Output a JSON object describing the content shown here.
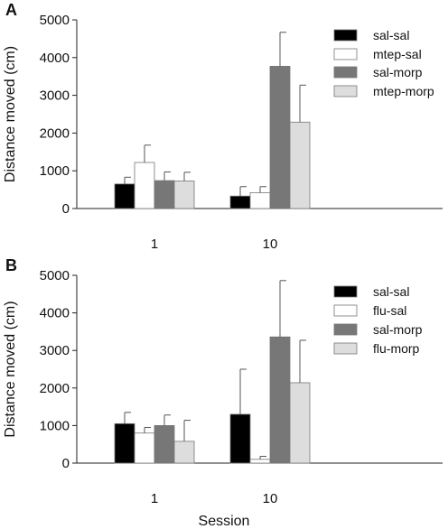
{
  "x_label": "Session",
  "chart_data": [
    {
      "type": "bar",
      "panel_label": "A",
      "ylabel": "Distance moved (cm)",
      "ylim": [
        0,
        5000
      ],
      "yticks": [
        0,
        1000,
        2000,
        3000,
        4000,
        5000
      ],
      "categories": [
        "1",
        "10"
      ],
      "legend_position": "top-right",
      "series": [
        {
          "name": "sal-sal",
          "color": "#000000",
          "values": [
            650,
            330
          ],
          "errors": [
            180,
            250
          ]
        },
        {
          "name": "mtep-sal",
          "color": "#ffffff",
          "values": [
            1220,
            420
          ],
          "errors": [
            460,
            160
          ]
        },
        {
          "name": "sal-morp",
          "color": "#777777",
          "values": [
            740,
            3770
          ],
          "errors": [
            230,
            900
          ]
        },
        {
          "name": "mtep-morp",
          "color": "#dddddd",
          "values": [
            730,
            2290
          ],
          "errors": [
            230,
            980
          ]
        }
      ]
    },
    {
      "type": "bar",
      "panel_label": "B",
      "ylabel": "Distance moved (cm)",
      "ylim": [
        0,
        5000
      ],
      "yticks": [
        0,
        1000,
        2000,
        3000,
        4000,
        5000
      ],
      "categories": [
        "1",
        "10"
      ],
      "legend_position": "top-right",
      "series": [
        {
          "name": "sal-sal",
          "color": "#000000",
          "values": [
            1050,
            1300
          ],
          "errors": [
            300,
            1200
          ]
        },
        {
          "name": "flu-sal",
          "color": "#ffffff",
          "values": [
            800,
            100
          ],
          "errors": [
            150,
            80
          ]
        },
        {
          "name": "sal-morp",
          "color": "#777777",
          "values": [
            1000,
            3360
          ],
          "errors": [
            280,
            1500
          ]
        },
        {
          "name": "flu-morp",
          "color": "#dddddd",
          "values": [
            580,
            2140
          ],
          "errors": [
            560,
            1130
          ]
        }
      ]
    }
  ]
}
